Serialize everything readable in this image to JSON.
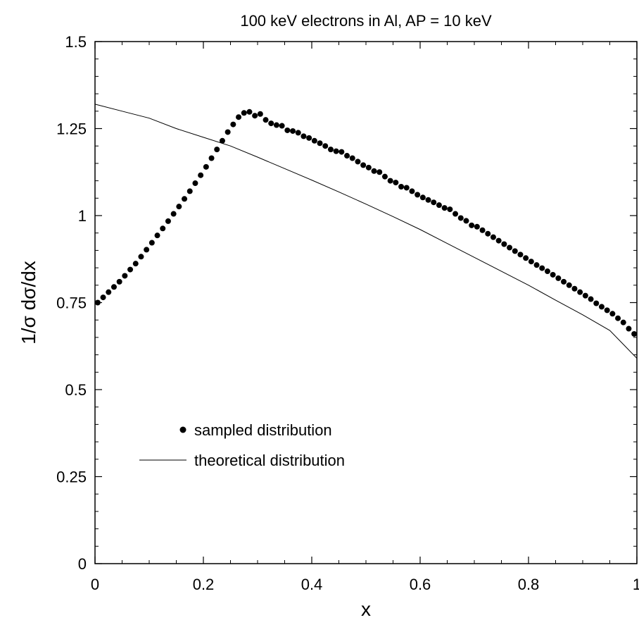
{
  "chart_data": {
    "type": "line",
    "title": "100 keV electrons in Al, AP = 10 keV",
    "xlabel": "x",
    "ylabel": "1/σ dσ/dx",
    "xlim": [
      0,
      1
    ],
    "ylim": [
      0,
      1.5
    ],
    "xticks": [
      0,
      0.2,
      0.4,
      0.6,
      0.8,
      1
    ],
    "xtick_labels": [
      "0",
      "0.2",
      "0.4",
      "0.6",
      "0.8",
      "1"
    ],
    "yticks": [
      0,
      0.25,
      0.5,
      0.75,
      1,
      1.25,
      1.5
    ],
    "ytick_labels": [
      "0",
      "0.25",
      "0.5",
      "0.75",
      "1",
      "1.25",
      "1.5"
    ],
    "grid": false,
    "legend_position": "lower-left",
    "series": [
      {
        "name": "sampled distribution",
        "style": "dots",
        "x": [
          0.005,
          0.015,
          0.025,
          0.035,
          0.045,
          0.055,
          0.065,
          0.075,
          0.085,
          0.095,
          0.105,
          0.115,
          0.125,
          0.135,
          0.145,
          0.155,
          0.165,
          0.175,
          0.185,
          0.195,
          0.205,
          0.215,
          0.225,
          0.235,
          0.245,
          0.255,
          0.265,
          0.275,
          0.285,
          0.295,
          0.305,
          0.315,
          0.325,
          0.335,
          0.345,
          0.355,
          0.365,
          0.375,
          0.385,
          0.395,
          0.405,
          0.415,
          0.425,
          0.435,
          0.445,
          0.455,
          0.465,
          0.475,
          0.485,
          0.495,
          0.505,
          0.515,
          0.525,
          0.535,
          0.545,
          0.555,
          0.565,
          0.575,
          0.585,
          0.595,
          0.605,
          0.615,
          0.625,
          0.635,
          0.645,
          0.655,
          0.665,
          0.675,
          0.685,
          0.695,
          0.705,
          0.715,
          0.725,
          0.735,
          0.745,
          0.755,
          0.765,
          0.775,
          0.785,
          0.795,
          0.805,
          0.815,
          0.825,
          0.835,
          0.845,
          0.855,
          0.865,
          0.875,
          0.885,
          0.895,
          0.905,
          0.915,
          0.925,
          0.935,
          0.945,
          0.955,
          0.965,
          0.975,
          0.985,
          0.995
        ],
        "y": [
          0.75,
          0.765,
          0.78,
          0.795,
          0.81,
          0.827,
          0.845,
          0.862,
          0.882,
          0.902,
          0.922,
          0.943,
          0.963,
          0.984,
          1.005,
          1.026,
          1.048,
          1.07,
          1.093,
          1.116,
          1.14,
          1.165,
          1.19,
          1.215,
          1.24,
          1.262,
          1.283,
          1.295,
          1.298,
          1.287,
          1.292,
          1.275,
          1.265,
          1.26,
          1.258,
          1.245,
          1.243,
          1.238,
          1.228,
          1.223,
          1.215,
          1.208,
          1.2,
          1.19,
          1.185,
          1.183,
          1.172,
          1.165,
          1.155,
          1.145,
          1.138,
          1.128,
          1.125,
          1.112,
          1.1,
          1.095,
          1.083,
          1.08,
          1.07,
          1.06,
          1.052,
          1.045,
          1.038,
          1.03,
          1.022,
          1.018,
          1.005,
          0.993,
          0.985,
          0.972,
          0.968,
          0.958,
          0.948,
          0.938,
          0.928,
          0.918,
          0.908,
          0.898,
          0.888,
          0.878,
          0.868,
          0.858,
          0.849,
          0.84,
          0.83,
          0.82,
          0.81,
          0.8,
          0.79,
          0.78,
          0.77,
          0.76,
          0.748,
          0.738,
          0.728,
          0.718,
          0.705,
          0.693,
          0.675,
          0.66
        ]
      },
      {
        "name": "theoretical distribution",
        "style": "line",
        "x": [
          0,
          0.05,
          0.1,
          0.15,
          0.2,
          0.25,
          0.3,
          0.35,
          0.4,
          0.45,
          0.5,
          0.55,
          0.6,
          0.65,
          0.7,
          0.75,
          0.8,
          0.85,
          0.9,
          0.95,
          1.0
        ],
        "y": [
          1.32,
          1.3,
          1.28,
          1.25,
          1.225,
          1.2,
          1.168,
          1.135,
          1.102,
          1.068,
          1.033,
          0.997,
          0.96,
          0.92,
          0.88,
          0.84,
          0.8,
          0.757,
          0.715,
          0.67,
          0.59
        ]
      }
    ]
  }
}
